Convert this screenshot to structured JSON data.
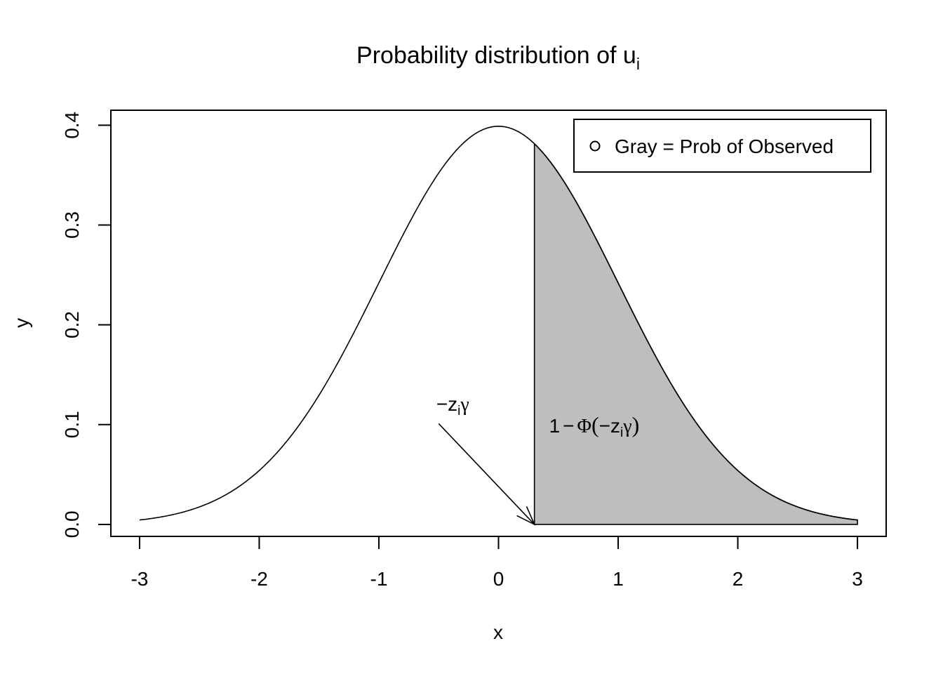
{
  "chart_data": {
    "type": "area",
    "title": "Probability distribution of u",
    "title_subscript": "i",
    "xlabel": "x",
    "ylabel": "y",
    "xlim": [
      -3.24,
      3.24
    ],
    "ylim": [
      -0.012,
      0.415
    ],
    "x_ticks": [
      -3,
      -2,
      -1,
      0,
      1,
      2,
      3
    ],
    "x_tick_labels": [
      "-3",
      "-2",
      "-1",
      "0",
      "1",
      "2",
      "3"
    ],
    "y_ticks": [
      0.0,
      0.1,
      0.2,
      0.3,
      0.4
    ],
    "y_tick_labels": [
      "0.0",
      "0.1",
      "0.2",
      "0.3",
      "0.4"
    ],
    "grid": false,
    "curve": {
      "name": "standard normal density",
      "x_from": -3,
      "x_to": 3,
      "color": "#000000"
    },
    "shaded_region": {
      "x_from": 0.3,
      "x_to": 3,
      "fill": "#bebebe",
      "stroke": "#000000"
    },
    "legend": {
      "position": "top-right",
      "label": "Gray = Prob of Observed"
    },
    "annotations": {
      "threshold": {
        "minus": "−",
        "var": "z",
        "sub": "i",
        "greek": "γ",
        "label_x": -0.52,
        "label_y": 0.121,
        "arrow_from": [
          -0.5,
          0.101
        ],
        "arrow_to": [
          0.3,
          0.0
        ]
      },
      "area_label": {
        "one": "1",
        "minus": "−",
        "phi": "Φ",
        "open": "(",
        "minus2": "−",
        "var": "z",
        "sub": "i",
        "greek": "γ",
        "close": ")",
        "label_x": 0.8,
        "label_y": 0.099
      }
    }
  }
}
